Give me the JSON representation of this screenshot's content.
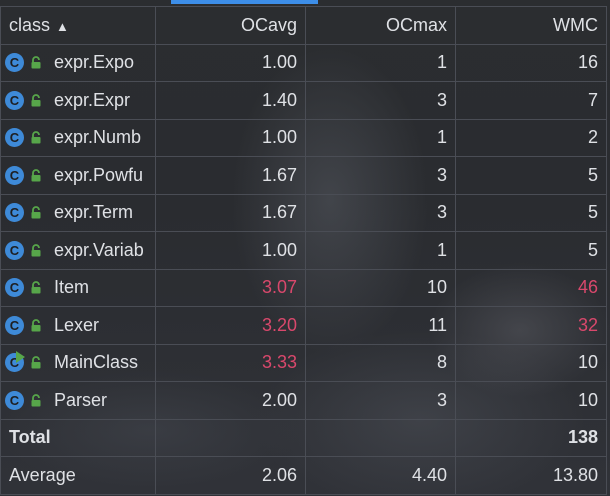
{
  "columns": {
    "class": "class",
    "sort_arrow": "▲",
    "ocavg": "OCavg",
    "ocmax": "OCmax",
    "wmc": "WMC"
  },
  "rows": [
    {
      "name": "expr.Expo",
      "icon": "class-icon",
      "ocavg": "1.00",
      "ocmax": "1",
      "wmc": "16",
      "ocavg_red": false,
      "wmc_red": false
    },
    {
      "name": "expr.Expr",
      "icon": "class-icon",
      "ocavg": "1.40",
      "ocmax": "3",
      "wmc": "7",
      "ocavg_red": false,
      "wmc_red": false
    },
    {
      "name": "expr.Numb",
      "icon": "class-icon",
      "ocavg": "1.00",
      "ocmax": "1",
      "wmc": "2",
      "ocavg_red": false,
      "wmc_red": false
    },
    {
      "name": "expr.Powfu",
      "icon": "class-icon",
      "ocavg": "1.67",
      "ocmax": "3",
      "wmc": "5",
      "ocavg_red": false,
      "wmc_red": false
    },
    {
      "name": "expr.Term",
      "icon": "class-icon",
      "ocavg": "1.67",
      "ocmax": "3",
      "wmc": "5",
      "ocavg_red": false,
      "wmc_red": false
    },
    {
      "name": "expr.Variab",
      "icon": "class-icon",
      "ocavg": "1.00",
      "ocmax": "1",
      "wmc": "5",
      "ocavg_red": false,
      "wmc_red": false
    },
    {
      "name": "Item",
      "icon": "class-icon",
      "ocavg": "3.07",
      "ocmax": "10",
      "wmc": "46",
      "ocavg_red": true,
      "wmc_red": true
    },
    {
      "name": "Lexer",
      "icon": "class-icon",
      "ocavg": "3.20",
      "ocmax": "11",
      "wmc": "32",
      "ocavg_red": true,
      "wmc_red": true
    },
    {
      "name": "MainClass",
      "icon": "runnable-class-icon",
      "ocavg": "3.33",
      "ocmax": "8",
      "wmc": "10",
      "ocavg_red": true,
      "wmc_red": false
    },
    {
      "name": "Parser",
      "icon": "class-icon",
      "ocavg": "2.00",
      "ocmax": "3",
      "wmc": "10",
      "ocavg_red": false,
      "wmc_red": false
    }
  ],
  "total": {
    "label": "Total",
    "ocavg": "",
    "ocmax": "",
    "wmc": "138"
  },
  "average": {
    "label": "Average",
    "ocavg": "2.06",
    "ocmax": "4.40",
    "wmc": "13.80"
  },
  "icon_letter": "C",
  "colors": {
    "accent": "#3d8ee8",
    "warning_value": "#d9486c",
    "class_icon": "#3e8ad8",
    "lock_icon": "#57a64a"
  }
}
